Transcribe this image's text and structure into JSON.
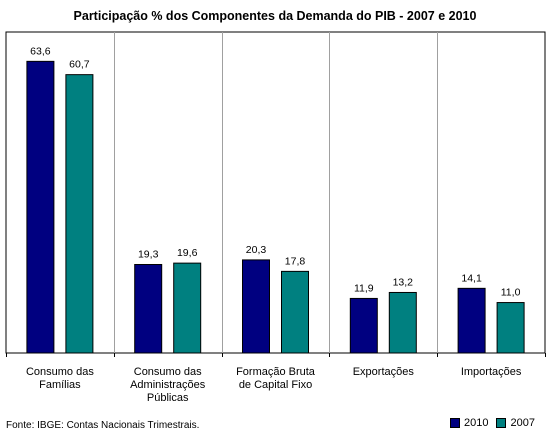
{
  "chart_data": {
    "type": "bar",
    "title": "Participação % dos Componentes da Demanda do PIB - 2007 e 2010",
    "categories": [
      [
        "Consumo das",
        "Famílias"
      ],
      [
        "Consumo das",
        "Administrações",
        "Públicas"
      ],
      [
        "Formação Bruta",
        "de Capital Fixo"
      ],
      [
        "Exportações"
      ],
      [
        "Importações"
      ]
    ],
    "series": [
      {
        "name": "2010",
        "color": "#000080",
        "values": [
          63.6,
          19.3,
          20.3,
          11.9,
          14.1
        ],
        "labels": [
          "63,6",
          "19,3",
          "20,3",
          "11,9",
          "14,1"
        ]
      },
      {
        "name": "2007",
        "color": "#008080",
        "values": [
          60.7,
          19.6,
          17.8,
          13.2,
          11.0
        ],
        "labels": [
          "60,7",
          "19,6",
          "17,8",
          "13,2",
          "11,0"
        ]
      }
    ],
    "ylim": [
      0,
      70
    ],
    "legend_position": "bottom-right",
    "grid": false,
    "source": "Fonte: IBGE: Contas Nacionais Trimestrais."
  }
}
